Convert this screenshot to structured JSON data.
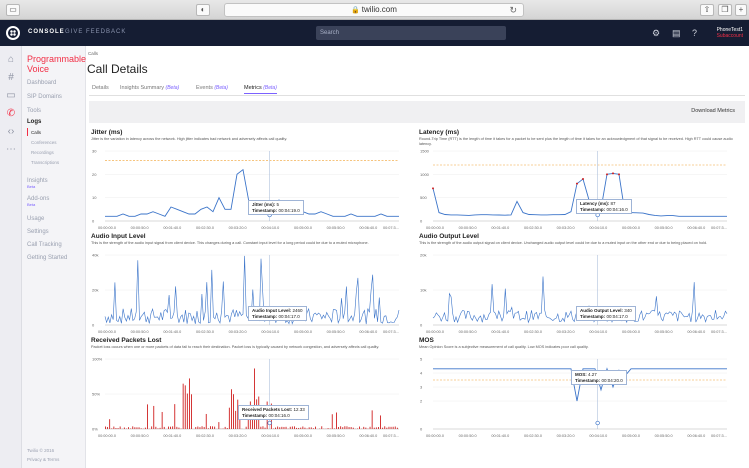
{
  "browser": {
    "url": "twilio.com"
  },
  "topnav": {
    "console": "CONSOLE",
    "feedback": "GIVE FEEDBACK",
    "search_placeholder": "Search",
    "user_name": "PhoneTest1",
    "user_account": "Subaccount"
  },
  "sidebar": {
    "title": "Programmable Voice",
    "items": [
      "Dashboard",
      "SIP Domains",
      "Tools",
      "Logs",
      "Calls",
      "Conferences",
      "Recordings",
      "Transcriptions",
      "Insights",
      "Add-ons",
      "Usage",
      "Settings",
      "Call Tracking",
      "Getting Started"
    ],
    "beta": "Beta",
    "footer": [
      "Twilio © 2016",
      "Privacy & Terms"
    ]
  },
  "page": {
    "breadcrumb": "Calls",
    "title": "Call Details",
    "tabs": [
      {
        "label": "Details",
        "beta": ""
      },
      {
        "label": "Insights Summary",
        "beta": "(Beta)"
      },
      {
        "label": "Events",
        "beta": "(Beta)"
      },
      {
        "label": "Metrics",
        "beta": "(Beta)"
      }
    ],
    "download": "Download Metrics"
  },
  "x_ticks": [
    "00:00:00.0",
    "00:00:50.0",
    "00:01:40.0",
    "00:02:30.0",
    "00:03:20.0",
    "00:04:10.0",
    "00:05:00.0",
    "00:05:50.0",
    "00:06:40.0",
    "00:07:3..."
  ],
  "panels": [
    {
      "title": "Jitter (ms)",
      "desc": "Jitter is the variation in latency across the network. High jitter indicates bad network and adversely affects call quality.",
      "y_ticks": [
        "30",
        "20",
        "10",
        "0"
      ],
      "tooltip_label": "Jitter (ms):",
      "tooltip_value": "5",
      "tooltip_ts_label": "Timestamp:",
      "tooltip_ts": "00:04:19.0"
    },
    {
      "title": "Latency (ms)",
      "desc": "Round-Trip Time (RTT) is the length of time it takes for a packet to be sent plus the length of time it takes for an acknowledgment of that signal to be received. High RTT could cause audio latency.",
      "y_ticks": [
        "1500",
        "1000",
        "500",
        "0"
      ],
      "tooltip_label": "Latency (ms):",
      "tooltip_value": "87",
      "tooltip_ts_label": "Timestamp:",
      "tooltip_ts": "00:04:16.0"
    },
    {
      "title": "Audio Input Level",
      "desc": "This is the strength of the audio input signal from client device. This changes during a call. Constant input level for a long period could be due to a muted microphone.",
      "y_ticks": [
        "40k",
        "20k",
        "0"
      ],
      "tooltip_label": "Audio Input Level:",
      "tooltip_value": "2460",
      "tooltip_ts_label": "Timestamp:",
      "tooltip_ts": "00:04:17.0"
    },
    {
      "title": "Audio Output Level",
      "desc": "This is the strength of the audio output signal on client device. Unchanged audio output level could be due to a muted input on the other end or due to being placed on hold.",
      "y_ticks": [
        "20k",
        "10k",
        "0"
      ],
      "tooltip_label": "Audio Output Level:",
      "tooltip_value": "340",
      "tooltip_ts_label": "Timestamp:",
      "tooltip_ts": "00:04:17.0"
    },
    {
      "title": "Received Packets Lost",
      "desc": "Packet loss occurs when one or more packets of data fail to reach their destination. Packet loss is typically caused by network congestion, and adversely affects call quality.",
      "y_ticks": [
        "100%",
        "50%",
        "0%"
      ],
      "tooltip_label": "Received Packets Lost:",
      "tooltip_value": "12.33",
      "tooltip_ts_label": "Timestamp:",
      "tooltip_ts": "00:04:16.0"
    },
    {
      "title": "MOS",
      "desc": "Mean Opinion Score is a subjective measurement of call quality. Low MOS indicates poor call quality.",
      "y_ticks": [
        "5",
        "4",
        "3",
        "2",
        "0"
      ],
      "tooltip_label": "MOS:",
      "tooltip_value": "4.27",
      "tooltip_ts_label": "Timestamp:",
      "tooltip_ts": "00:04:20.0"
    }
  ],
  "chart_data": [
    {
      "type": "line",
      "title": "Jitter (ms)",
      "ylim": [
        0,
        30
      ],
      "threshold": 26,
      "series": [
        {
          "values": [
            2,
            2,
            2,
            3,
            2,
            2,
            3,
            3,
            4,
            3,
            2,
            6,
            5,
            4,
            3,
            3,
            5,
            6,
            4,
            10,
            5,
            5,
            20,
            22,
            8,
            6,
            5,
            5,
            6,
            9,
            6,
            5,
            5,
            4,
            3,
            3,
            4,
            3,
            2,
            2,
            2,
            3,
            2,
            2,
            2,
            2,
            3,
            2,
            2,
            2
          ]
        }
      ]
    },
    {
      "type": "line",
      "title": "Latency (ms)",
      "ylim": [
        0,
        1500
      ],
      "threshold": 1200,
      "series": [
        {
          "values": [
            700,
            180,
            140,
            130,
            130,
            125,
            120,
            130,
            135,
            135,
            130,
            128,
            125,
            130,
            420,
            180,
            140,
            135,
            130,
            130,
            135,
            135,
            140,
            200,
            800,
            900,
            450,
            300,
            260,
            1000,
            1020,
            1000,
            170,
            180,
            175,
            170,
            140,
            120,
            110,
            115,
            115,
            100,
            100,
            100,
            100,
            100,
            100,
            100,
            100,
            100
          ]
        }
      ]
    },
    {
      "type": "line",
      "title": "Audio Input Level",
      "ylim": [
        0,
        40000
      ]
    },
    {
      "type": "line",
      "title": "Audio Output Level",
      "ylim": [
        0,
        20000
      ]
    },
    {
      "type": "bar",
      "title": "Received Packets Lost",
      "ylim": [
        0,
        100
      ]
    },
    {
      "type": "line",
      "title": "MOS",
      "ylim": [
        0,
        5
      ],
      "threshold": 3.5,
      "series": [
        {
          "values": [
            4.3,
            4.3,
            4.3,
            4.3,
            4.3,
            4.3,
            4.3,
            4.3,
            4.3,
            4.3,
            4.3,
            4.3,
            4.3,
            4.3,
            4.3,
            4.3,
            4.3,
            4.3,
            4.3,
            4.3,
            4.3,
            4.3,
            4.3,
            4.3,
            2.0,
            4.3,
            4.3,
            4.3,
            2.8,
            4.3,
            3.0,
            4.2,
            3.8,
            4.3,
            4.3,
            4.3,
            4.3,
            4.3,
            4.3,
            4.3,
            4.3,
            4.3,
            4.3,
            4.3,
            4.3,
            4.3,
            4.3,
            4.3,
            4.3,
            4.3
          ]
        }
      ]
    }
  ],
  "colors": {
    "accent": "#f22f46",
    "beta": "#7b61ff",
    "line": "#3b74c9",
    "threshold": "#f0a030",
    "loss": "#d02020"
  }
}
